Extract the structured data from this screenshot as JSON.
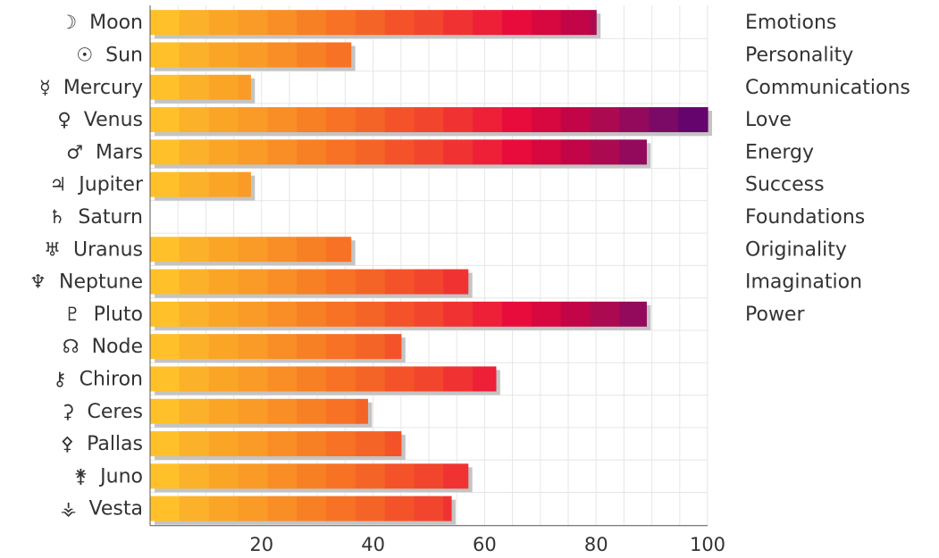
{
  "chart_data": {
    "type": "bar",
    "orientation": "horizontal",
    "categories": [
      "Moon",
      "Sun",
      "Mercury",
      "Venus",
      "Mars",
      "Jupiter",
      "Saturn",
      "Uranus",
      "Neptune",
      "Pluto",
      "Node",
      "Chiron",
      "Ceres",
      "Pallas",
      "Juno",
      "Vesta"
    ],
    "symbols": [
      "☽",
      "☉",
      "☿",
      "♀",
      "♂",
      "♃",
      "♄",
      "♅",
      "♆",
      "♇",
      "☊",
      "⚷",
      "⚳",
      "⚴",
      "⚵",
      "⚶"
    ],
    "values": [
      80,
      36,
      18,
      100,
      89,
      18,
      0,
      36,
      57,
      89,
      45,
      62,
      39,
      45,
      57,
      54
    ],
    "meanings": [
      "Emotions",
      "Personality",
      "Communications",
      "Love",
      "Energy",
      "Success",
      "Foundations",
      "Originality",
      "Imagination",
      "Power"
    ],
    "x_ticks": [
      "20",
      "40",
      "60",
      "80",
      "100"
    ],
    "xlim": [
      0,
      100
    ],
    "grid": true,
    "colors": [
      "#ffc02a",
      "#fbb129",
      "#fba527",
      "#fa9a27",
      "#f98d26",
      "#f78024",
      "#f77225",
      "#f56427",
      "#f45329",
      "#f2452d",
      "#f03332",
      "#ed2038",
      "#e80c3d",
      "#d6083f",
      "#c10547",
      "#ab0a51",
      "#930a5c",
      "#7b0a67",
      "#66046d"
    ],
    "shadow_color": "#c4c4c4",
    "title": "",
    "xlabel": "",
    "ylabel": ""
  }
}
